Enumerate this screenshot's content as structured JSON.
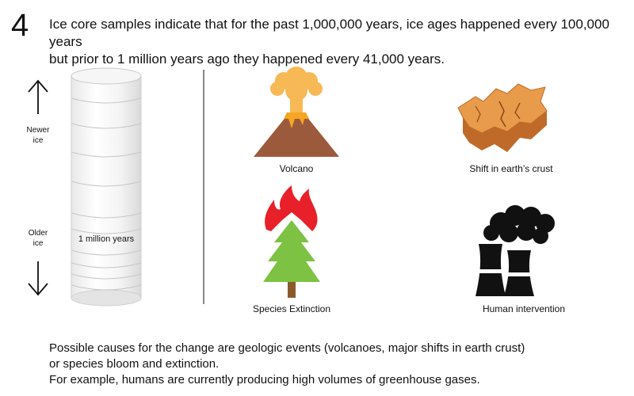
{
  "header": {
    "step_number": "4",
    "text_line1": "Ice core samples indicate that for the past 1,000,000 years, ice ages happened every 100,000 years",
    "text_line2": "but prior to 1 million years ago they happened every 41,000 years."
  },
  "ice_core": {
    "newer_label_line1": "Newer",
    "newer_label_line2": "ice",
    "older_label_line1": "Older",
    "older_label_line2": "ice",
    "marker_label": "1 million years"
  },
  "causes": {
    "volcano": {
      "label": "Volcano",
      "icon": "volcano-icon"
    },
    "crust": {
      "label": "Shift in earth’s crust",
      "icon": "earth-crust-shift-icon"
    },
    "extinction": {
      "label": "Species Extinction",
      "icon": "burning-tree-icon"
    },
    "human": {
      "label": "Human intervention",
      "icon": "power-plant-icon"
    }
  },
  "footer": {
    "line1": "Possible causes for the change are geologic events (volcanoes, major shifts in earth crust)",
    "line2": "or species bloom and extinction.",
    "line3": "For example, humans are currently producing high volumes of greenhouse gases."
  },
  "colors": {
    "volcano_body": "#9c5a3c",
    "lava": "#f5a623",
    "smoke": "#f7b955",
    "crust_top": "#e89b4a",
    "crust_side": "#c06a2a",
    "flame_red": "#e8202a",
    "tree_green": "#7dc242",
    "trunk": "#8b5a2b",
    "plant_black": "#111111"
  }
}
